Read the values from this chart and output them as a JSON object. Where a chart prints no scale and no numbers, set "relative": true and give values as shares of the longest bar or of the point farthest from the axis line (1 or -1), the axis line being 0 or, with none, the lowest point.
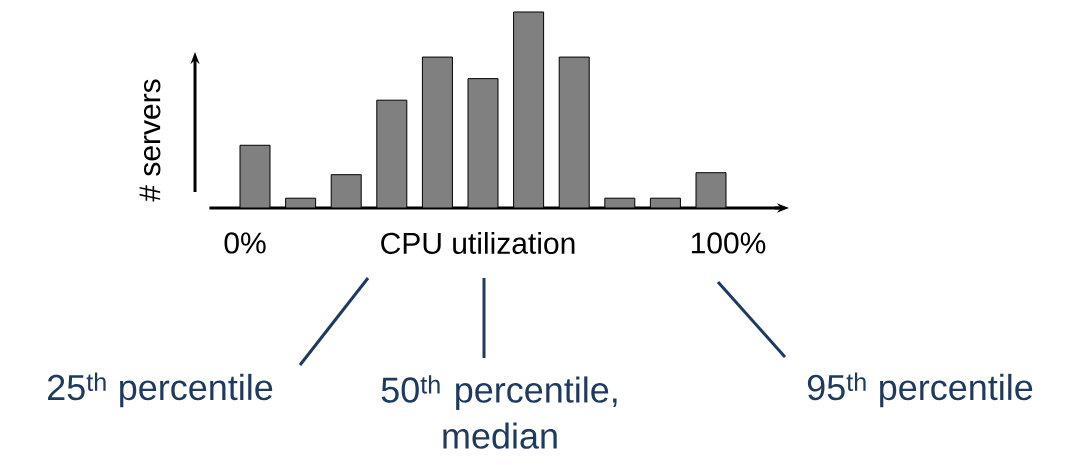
{
  "chart_data": {
    "type": "bar",
    "relative": true,
    "xlabel": "CPU utilization",
    "ylabel": "# servers",
    "color": "#808080",
    "categories": [
      null,
      null,
      null,
      null,
      null,
      null,
      null,
      null,
      null,
      null,
      null
    ],
    "values": [
      0.32,
      0.05,
      0.17,
      0.55,
      0.77,
      0.66,
      1.0,
      0.77,
      0.05,
      0.05,
      0.18
    ],
    "annotations": [
      "0%",
      "100%",
      "25$^{th}$ percentile",
      "50$^{th}$ percentile, median",
      "95$^{th}$ percentile"
    ]
  }
}
